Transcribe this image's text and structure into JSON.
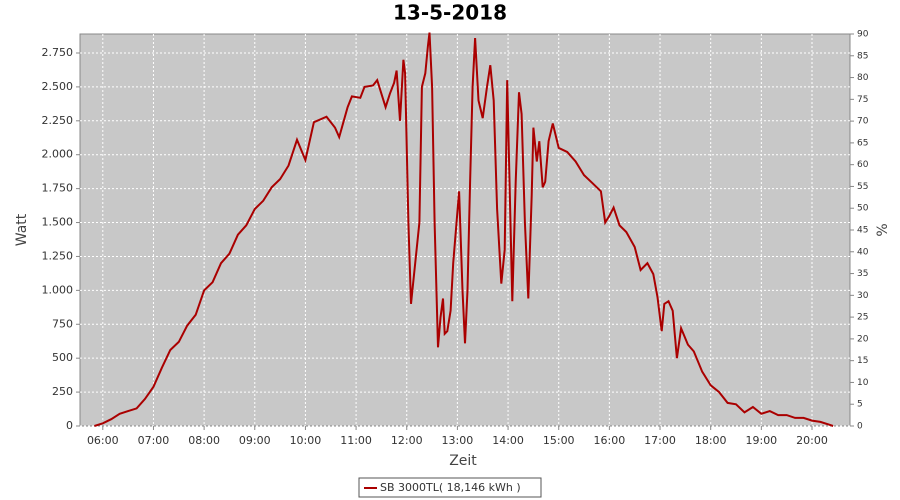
{
  "chart_data": {
    "type": "line",
    "title": "13-5-2018",
    "x_label": "Zeit",
    "y_label": "Watt",
    "y2_label": "%",
    "x": [
      "05:50",
      "06:00",
      "06:10",
      "06:20",
      "06:30",
      "06:40",
      "06:50",
      "07:00",
      "07:10",
      "07:20",
      "07:30",
      "07:40",
      "07:50",
      "08:00",
      "08:10",
      "08:20",
      "08:30",
      "08:40",
      "08:50",
      "09:00",
      "09:10",
      "09:20",
      "09:30",
      "09:40",
      "09:50",
      "10:00",
      "10:10",
      "10:25",
      "10:35",
      "10:40",
      "10:50",
      "10:55",
      "11:05",
      "11:10",
      "11:20",
      "11:25",
      "11:30",
      "11:35",
      "11:40",
      "11:45",
      "11:48",
      "11:52",
      "11:56",
      "11:58",
      "12:02",
      "12:05",
      "12:10",
      "12:15",
      "12:18",
      "12:22",
      "12:25",
      "12:27",
      "12:30",
      "12:33",
      "12:37",
      "12:40",
      "12:43",
      "12:45",
      "12:48",
      "12:52",
      "12:55",
      "13:02",
      "13:06",
      "13:09",
      "13:12",
      "13:15",
      "13:18",
      "13:21",
      "13:25",
      "13:30",
      "13:35",
      "13:39",
      "13:43",
      "13:47",
      "13:52",
      "13:56",
      "13:59",
      "14:01",
      "14:05",
      "14:09",
      "14:13",
      "14:16",
      "14:20",
      "14:24",
      "14:28",
      "14:30",
      "14:34",
      "14:37",
      "14:41",
      "14:44",
      "14:48",
      "14:53",
      "15:00",
      "15:10",
      "15:20",
      "15:30",
      "15:40",
      "15:50",
      "15:55",
      "16:00",
      "16:05",
      "16:12",
      "16:20",
      "16:30",
      "16:37",
      "16:45",
      "16:52",
      "16:57",
      "17:02",
      "17:05",
      "17:10",
      "17:15",
      "17:20",
      "17:25",
      "17:33",
      "17:40",
      "17:50",
      "18:00",
      "18:10",
      "18:20",
      "18:30",
      "18:40",
      "18:50",
      "19:00",
      "19:10",
      "19:20",
      "19:30",
      "19:40",
      "19:50",
      "20:00",
      "20:10",
      "20:20",
      "20:25"
    ],
    "series": [
      {
        "name": "SB 3000TL( 18,146 kWh )",
        "color": "#aa0000",
        "values": [
          0,
          20,
          50,
          90,
          110,
          130,
          200,
          290,
          430,
          560,
          620,
          740,
          820,
          1000,
          1060,
          1200,
          1270,
          1410,
          1480,
          1600,
          1660,
          1760,
          1820,
          1920,
          2110,
          1960,
          2240,
          2280,
          2200,
          2130,
          2350,
          2430,
          2420,
          2500,
          2510,
          2550,
          2450,
          2350,
          2450,
          2530,
          2620,
          2250,
          2700,
          2600,
          1500,
          900,
          1200,
          1500,
          2500,
          2600,
          2800,
          2900,
          2500,
          1500,
          580,
          800,
          940,
          680,
          700,
          850,
          1200,
          1730,
          1000,
          610,
          1000,
          1800,
          2500,
          2860,
          2400,
          2270,
          2500,
          2660,
          2400,
          1600,
          1050,
          1300,
          2550,
          2000,
          920,
          1800,
          2460,
          2300,
          1500,
          940,
          1700,
          2200,
          1950,
          2100,
          1760,
          1800,
          2100,
          2230,
          2050,
          2020,
          1950,
          1850,
          1790,
          1730,
          1500,
          1550,
          1610,
          1480,
          1430,
          1320,
          1150,
          1200,
          1120,
          950,
          700,
          900,
          920,
          850,
          500,
          720,
          600,
          550,
          400,
          300,
          250,
          170,
          160,
          100,
          140,
          90,
          110,
          80,
          80,
          60,
          60,
          40,
          30,
          10,
          0
        ]
      }
    ],
    "xlim": [
      "05:33",
      "20:45"
    ],
    "xticks": [
      "06:00",
      "07:00",
      "08:00",
      "09:00",
      "10:00",
      "11:00",
      "12:00",
      "13:00",
      "14:00",
      "15:00",
      "16:00",
      "17:00",
      "18:00",
      "19:00",
      "20:00"
    ],
    "ylim": [
      0,
      2890
    ],
    "yticks": [
      0,
      250,
      500,
      750,
      {
        "value": 1000,
        "label": "1.000"
      },
      {
        "value": 1250,
        "label": "1.250"
      },
      {
        "value": 1500,
        "label": "1.500"
      },
      {
        "value": 1750,
        "label": "1.750"
      },
      {
        "value": 2000,
        "label": "2.000"
      },
      {
        "value": 2250,
        "label": "2.250"
      },
      {
        "value": 2500,
        "label": "2.500"
      },
      {
        "value": 2750,
        "label": "2.750"
      }
    ],
    "y2lim": [
      0,
      90
    ],
    "y2ticks": [
      0,
      5,
      10,
      15,
      20,
      25,
      30,
      35,
      40,
      45,
      50,
      55,
      60,
      65,
      70,
      75,
      80,
      85,
      90
    ],
    "grid": true
  }
}
